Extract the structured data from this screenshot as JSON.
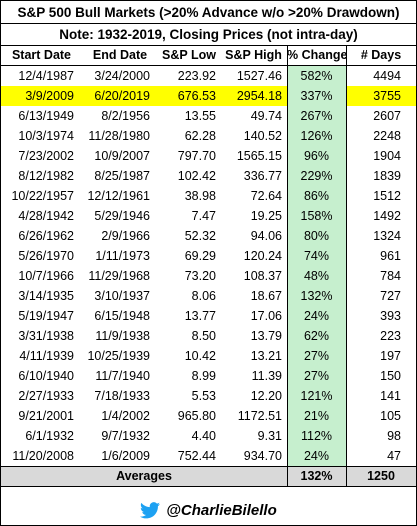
{
  "title": "S&P 500 Bull Markets (>20% Advance w/o >20% Drawdown)",
  "note": "Note: 1932-2019, Closing Prices (not intra-day)",
  "columns": [
    "Start Date",
    "End Date",
    "S&P Low",
    "S&P High",
    "% Change",
    "# Days"
  ],
  "rows": [
    [
      "12/4/1987",
      "3/24/2000",
      "223.92",
      "1527.46",
      "582%",
      "4494"
    ],
    [
      "3/9/2009",
      "6/20/2019",
      "676.53",
      "2954.18",
      "337%",
      "3755"
    ],
    [
      "6/13/1949",
      "8/2/1956",
      "13.55",
      "49.74",
      "267%",
      "2607"
    ],
    [
      "10/3/1974",
      "11/28/1980",
      "62.28",
      "140.52",
      "126%",
      "2248"
    ],
    [
      "7/23/2002",
      "10/9/2007",
      "797.70",
      "1565.15",
      "96%",
      "1904"
    ],
    [
      "8/12/1982",
      "8/25/1987",
      "102.42",
      "336.77",
      "229%",
      "1839"
    ],
    [
      "10/22/1957",
      "12/12/1961",
      "38.98",
      "72.64",
      "86%",
      "1512"
    ],
    [
      "4/28/1942",
      "5/29/1946",
      "7.47",
      "19.25",
      "158%",
      "1492"
    ],
    [
      "6/26/1962",
      "2/9/1966",
      "52.32",
      "94.06",
      "80%",
      "1324"
    ],
    [
      "5/26/1970",
      "1/11/1973",
      "69.29",
      "120.24",
      "74%",
      "961"
    ],
    [
      "10/7/1966",
      "11/29/1968",
      "73.20",
      "108.37",
      "48%",
      "784"
    ],
    [
      "3/14/1935",
      "3/10/1937",
      "8.06",
      "18.67",
      "132%",
      "727"
    ],
    [
      "5/19/1947",
      "6/15/1948",
      "13.77",
      "17.06",
      "24%",
      "393"
    ],
    [
      "3/31/1938",
      "11/9/1938",
      "8.50",
      "13.79",
      "62%",
      "223"
    ],
    [
      "4/11/1939",
      "10/25/1939",
      "10.42",
      "13.21",
      "27%",
      "197"
    ],
    [
      "6/10/1940",
      "11/7/1940",
      "8.99",
      "11.39",
      "27%",
      "150"
    ],
    [
      "2/27/1933",
      "7/18/1933",
      "5.53",
      "12.20",
      "121%",
      "141"
    ],
    [
      "9/21/2001",
      "1/4/2002",
      "965.80",
      "1172.51",
      "21%",
      "105"
    ],
    [
      "6/1/1932",
      "9/7/1932",
      "4.40",
      "9.31",
      "112%",
      "98"
    ],
    [
      "11/20/2008",
      "1/6/2009",
      "752.44",
      "934.70",
      "24%",
      "47"
    ]
  ],
  "averages": {
    "label": "Averages",
    "pct_change": "132%",
    "days": "1250"
  },
  "footer": {
    "icon": "twitter-bird-icon",
    "handle": "@CharlieBilello"
  },
  "colors": {
    "highlight": "#ffff00",
    "pct_column": "#c6efce",
    "averages_row": "#d9d9d9",
    "twitter": "#1da1f2"
  },
  "chart_data": {
    "type": "table",
    "title": "S&P 500 Bull Markets (>20% Advance w/o >20% Drawdown)",
    "subtitle": "Note: 1932-2019, Closing Prices (not intra-day)",
    "highlighted_row": "3/9/2009"
  }
}
